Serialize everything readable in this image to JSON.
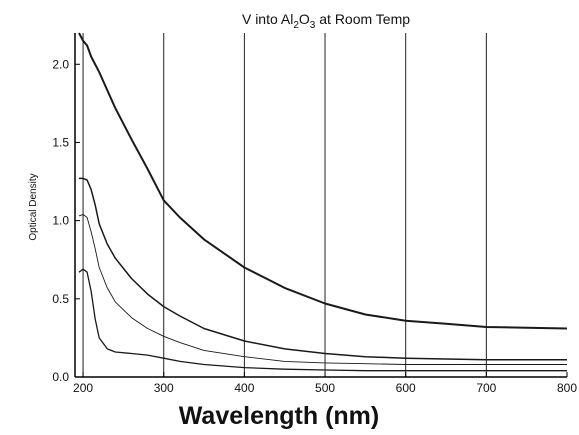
{
  "chart_data": {
    "type": "line",
    "title": "V into Al2O3 at Room Temp",
    "title_parts": [
      "V into Al",
      "2",
      "O",
      "3",
      " at Room Temp"
    ],
    "xlabel": "Wavelength (nm)",
    "ylabel": "Optical Density",
    "xlim": [
      190,
      800
    ],
    "ylim": [
      0,
      2.2
    ],
    "x_ticks": [
      200,
      300,
      400,
      500,
      600,
      700,
      800
    ],
    "y_ticks": [
      0.0,
      0.5,
      1.0,
      1.5,
      2.0
    ],
    "x_tick_labels": [
      "200",
      "300",
      "400",
      "500",
      "600",
      "700",
      "800"
    ],
    "y_tick_labels": [
      "0.0",
      "0.5",
      "1.0",
      "1.5",
      "2.0"
    ],
    "vertical_gridlines": [
      200,
      300,
      400,
      500,
      600,
      700
    ],
    "grid": "vertical only",
    "legend": "none",
    "series": [
      {
        "x": [
          195,
          200,
          205,
          210,
          220,
          240,
          260,
          280,
          300,
          320,
          350,
          400,
          450,
          500,
          550,
          600,
          650,
          700,
          750,
          800
        ],
        "y": [
          2.2,
          2.15,
          2.12,
          2.05,
          1.95,
          1.72,
          1.52,
          1.33,
          1.13,
          1.02,
          0.88,
          0.7,
          0.57,
          0.47,
          0.4,
          0.36,
          0.34,
          0.32,
          0.315,
          0.31
        ]
      },
      {
        "x": [
          195,
          200,
          205,
          210,
          215,
          220,
          230,
          240,
          260,
          280,
          300,
          320,
          350,
          400,
          450,
          500,
          550,
          600,
          650,
          700,
          750,
          800
        ],
        "y": [
          1.27,
          1.27,
          1.26,
          1.2,
          1.1,
          0.98,
          0.85,
          0.76,
          0.63,
          0.53,
          0.45,
          0.39,
          0.31,
          0.23,
          0.18,
          0.15,
          0.13,
          0.12,
          0.115,
          0.11,
          0.11,
          0.11
        ]
      },
      {
        "x": [
          195,
          200,
          205,
          210,
          215,
          220,
          230,
          240,
          260,
          280,
          300,
          320,
          350,
          400,
          450,
          500,
          550,
          600,
          650,
          700,
          750,
          800
        ],
        "y": [
          1.03,
          1.04,
          1.02,
          0.93,
          0.82,
          0.7,
          0.57,
          0.48,
          0.38,
          0.31,
          0.26,
          0.22,
          0.17,
          0.13,
          0.1,
          0.09,
          0.085,
          0.08,
          0.08,
          0.08,
          0.08,
          0.08
        ]
      },
      {
        "x": [
          195,
          200,
          205,
          210,
          215,
          220,
          230,
          240,
          260,
          280,
          300,
          320,
          350,
          400,
          450,
          500,
          550,
          600,
          650,
          700,
          750,
          800
        ],
        "y": [
          0.67,
          0.69,
          0.67,
          0.55,
          0.37,
          0.25,
          0.18,
          0.16,
          0.15,
          0.14,
          0.12,
          0.1,
          0.08,
          0.06,
          0.05,
          0.045,
          0.04,
          0.04,
          0.04,
          0.04,
          0.04,
          0.04
        ]
      }
    ],
    "line_color": "#1a1a1a",
    "line_widths": [
      2,
      1.5,
      0.9,
      1.3
    ]
  }
}
